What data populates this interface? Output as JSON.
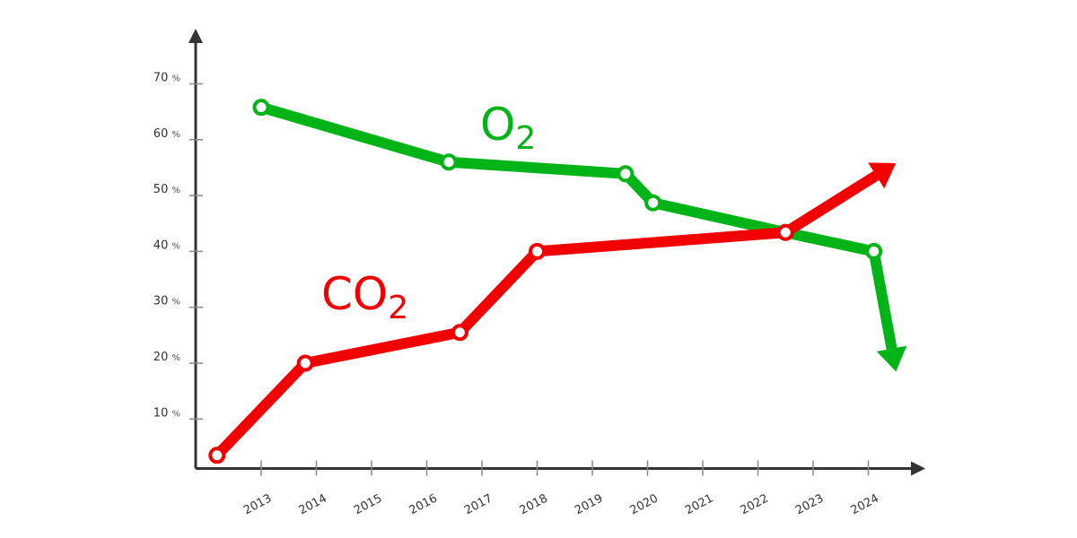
{
  "chart_data": {
    "type": "line",
    "title": "",
    "xlabel": "",
    "ylabel": "",
    "x_ticks": [
      "2013",
      "2014",
      "2015",
      "2016",
      "2017",
      "2018",
      "2019",
      "2020",
      "2021",
      "2022",
      "2023",
      "2024"
    ],
    "y_ticks": [
      {
        "value": 10,
        "label": "10",
        "unit": "%"
      },
      {
        "value": 20,
        "label": "20",
        "unit": "%"
      },
      {
        "value": 30,
        "label": "30",
        "unit": "%"
      },
      {
        "value": 40,
        "label": "40",
        "unit": "%"
      },
      {
        "value": 50,
        "label": "50",
        "unit": "%"
      },
      {
        "value": 60,
        "label": "60",
        "unit": "%"
      },
      {
        "value": 70,
        "label": "70",
        "unit": "%"
      }
    ],
    "xlim": [
      2011.6,
      2025.0
    ],
    "ylim": [
      0,
      75
    ],
    "grid": false,
    "series": [
      {
        "name": "CO2",
        "label_main": "CO",
        "label_sub": "2",
        "color": "#f20000",
        "points": [
          [
            2012.2,
            3.5
          ],
          [
            2013.8,
            20
          ],
          [
            2016.6,
            25.5
          ],
          [
            2018.0,
            40
          ],
          [
            2022.5,
            43.4
          ]
        ],
        "arrow_to": [
          2024.5,
          55.8
        ],
        "trend": "up"
      },
      {
        "name": "O2",
        "label_main": "O",
        "label_sub": "2",
        "color": "#00b418",
        "points": [
          [
            2013.0,
            65.8
          ],
          [
            2016.4,
            56
          ],
          [
            2019.6,
            53.9
          ],
          [
            2020.1,
            48.7
          ],
          [
            2022.5,
            43.4
          ],
          [
            2024.1,
            40
          ]
        ],
        "arrow_to": [
          2024.5,
          18.5
        ],
        "trend": "down"
      }
    ]
  }
}
